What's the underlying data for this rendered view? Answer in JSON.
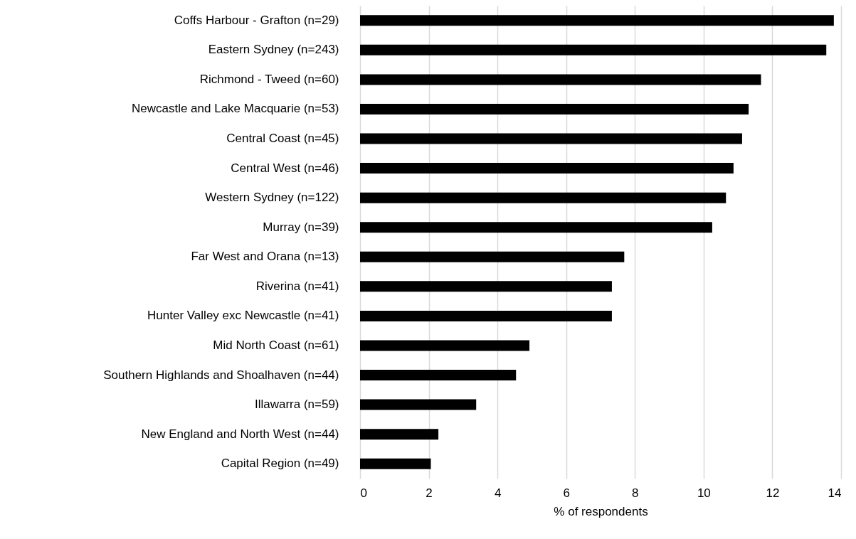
{
  "chart_data": {
    "type": "bar",
    "orientation": "horizontal",
    "xlabel": "% of respondents",
    "categories": [
      "Coffs Harbour - Grafton (n=29)",
      "Eastern Sydney (n=243)",
      "Richmond - Tweed (n=60)",
      "Newcastle and Lake Macquarie (n=53)",
      "Central Coast (n=45)",
      "Central West (n=46)",
      "Western Sydney (n=122)",
      "Murray (n=39)",
      "Far West and Orana (n=13)",
      "Riverina (n=41)",
      "Hunter Valley exc Newcastle (n=41)",
      "Mid North Coast (n=61)",
      "Southern Highlands and Shoalhaven (n=44)",
      "Illawarra (n=59)",
      "New England and North West (n=44)",
      "Capital Region (n=49)"
    ],
    "values": [
      13.79,
      13.57,
      11.67,
      11.31,
      11.12,
      10.87,
      10.65,
      10.25,
      7.69,
      7.33,
      7.33,
      4.93,
      4.54,
      3.38,
      2.28,
      2.06
    ],
    "color": "#000000",
    "xlim": [
      0,
      14
    ],
    "xticks": [
      0,
      2,
      4,
      6,
      8,
      10,
      12,
      14
    ],
    "grid": "x"
  }
}
